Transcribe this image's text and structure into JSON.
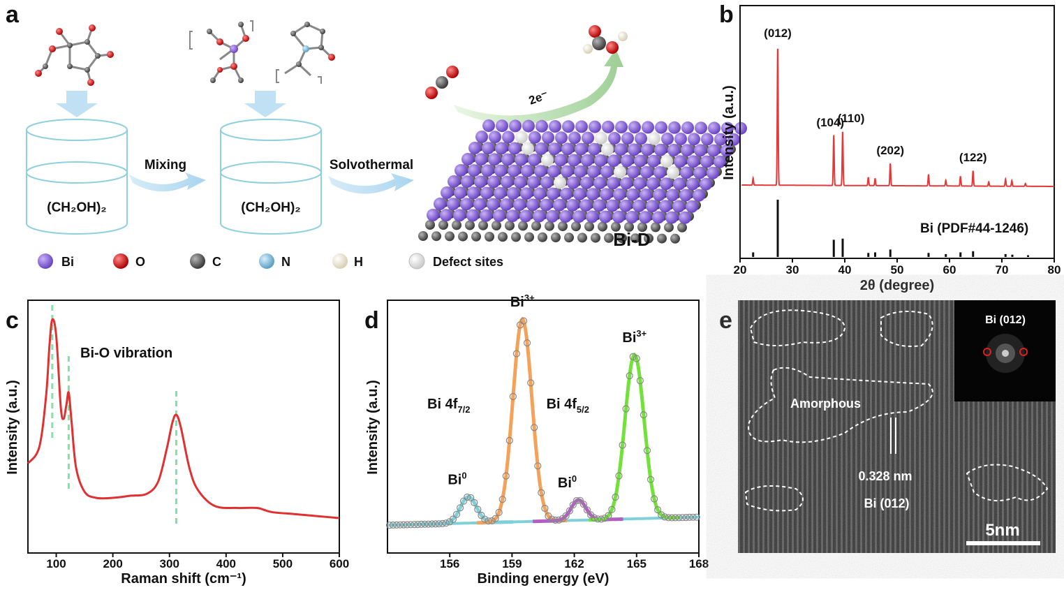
{
  "panels": {
    "a": {
      "label": "a",
      "vessel_left_text": "(CH₂OH)₂",
      "vessel_right_text": "(CH₂OH)₂",
      "step1": "Mixing",
      "step2": "Solvothermal",
      "electron": "2e⁻",
      "product": "Bi-D",
      "legend": [
        {
          "name": "Bi",
          "color": "#8a63d2"
        },
        {
          "name": "O",
          "color": "#e02020"
        },
        {
          "name": "C",
          "color": "#666666"
        },
        {
          "name": "N",
          "color": "#7ab8d8"
        },
        {
          "name": "H",
          "color": "#efe8d5"
        },
        {
          "name": "Defect sites",
          "color": "#f2f2f2"
        }
      ]
    },
    "b": {
      "label": "b",
      "reference": "Bi (PDF#44-1246)"
    },
    "c": {
      "label": "c",
      "annotation": "Bi-O vibration"
    },
    "d": {
      "label": "d"
    },
    "e": {
      "label": "e",
      "amorphous": "Amorphous",
      "spacing": "0.328 nm",
      "plane": "Bi (012)",
      "inset": "Bi (012)",
      "scale": "5nm"
    }
  },
  "chart_data": [
    {
      "id": "b",
      "type": "line",
      "xlabel": "2θ (degree)",
      "ylabel": "Intensity (a.u.)",
      "xlim": [
        20,
        80
      ],
      "xticks": [
        20,
        30,
        40,
        50,
        60,
        70,
        80
      ],
      "series_color": "#e23a3a",
      "peaks": [
        {
          "x": 22.5,
          "h": 0.05
        },
        {
          "x": 27.2,
          "h": 1.0
        },
        {
          "x": 37.9,
          "h": 0.36
        },
        {
          "x": 39.6,
          "h": 0.39
        },
        {
          "x": 44.5,
          "h": 0.06
        },
        {
          "x": 45.8,
          "h": 0.05
        },
        {
          "x": 48.7,
          "h": 0.16
        },
        {
          "x": 56.0,
          "h": 0.08
        },
        {
          "x": 59.3,
          "h": 0.04
        },
        {
          "x": 62.1,
          "h": 0.07
        },
        {
          "x": 64.5,
          "h": 0.11
        },
        {
          "x": 67.5,
          "h": 0.03
        },
        {
          "x": 70.7,
          "h": 0.05
        },
        {
          "x": 71.9,
          "h": 0.04
        },
        {
          "x": 74.5,
          "h": 0.02
        }
      ],
      "peak_labels": [
        {
          "x": 27.2,
          "text": "(012)"
        },
        {
          "x": 37.9,
          "text": "(104)"
        },
        {
          "x": 39.6,
          "text": "(110)"
        },
        {
          "x": 48.7,
          "text": "(202)"
        },
        {
          "x": 64.5,
          "text": "(122)"
        }
      ],
      "reference_lines": [
        {
          "x": 22.5,
          "h": 0.08
        },
        {
          "x": 27.2,
          "h": 1.0
        },
        {
          "x": 37.9,
          "h": 0.3
        },
        {
          "x": 39.6,
          "h": 0.32
        },
        {
          "x": 44.5,
          "h": 0.07
        },
        {
          "x": 45.8,
          "h": 0.08
        },
        {
          "x": 48.7,
          "h": 0.13
        },
        {
          "x": 56.0,
          "h": 0.07
        },
        {
          "x": 59.3,
          "h": 0.05
        },
        {
          "x": 62.1,
          "h": 0.08
        },
        {
          "x": 64.5,
          "h": 0.1
        },
        {
          "x": 70.7,
          "h": 0.05
        },
        {
          "x": 72.0,
          "h": 0.04
        },
        {
          "x": 75.0,
          "h": 0.03
        }
      ]
    },
    {
      "id": "c",
      "type": "line",
      "xlabel": "Raman shift (cm⁻¹)",
      "ylabel": "Intensity (a.u.)",
      "xlim": [
        50,
        600
      ],
      "xticks": [
        100,
        200,
        300,
        400,
        500,
        600
      ],
      "series_color": "#e03030",
      "marker_lines": [
        93,
        122,
        312
      ],
      "points": [
        [
          50,
          0.27
        ],
        [
          70,
          0.35
        ],
        [
          82,
          0.6
        ],
        [
          88,
          0.85
        ],
        [
          93,
          0.98
        ],
        [
          100,
          0.9
        ],
        [
          108,
          0.55
        ],
        [
          113,
          0.49
        ],
        [
          118,
          0.56
        ],
        [
          122,
          0.62
        ],
        [
          127,
          0.48
        ],
        [
          135,
          0.25
        ],
        [
          150,
          0.13
        ],
        [
          170,
          0.1
        ],
        [
          200,
          0.1
        ],
        [
          230,
          0.11
        ],
        [
          260,
          0.12
        ],
        [
          280,
          0.18
        ],
        [
          295,
          0.34
        ],
        [
          305,
          0.47
        ],
        [
          312,
          0.51
        ],
        [
          320,
          0.45
        ],
        [
          335,
          0.25
        ],
        [
          350,
          0.14
        ],
        [
          380,
          0.06
        ],
        [
          420,
          0.05
        ],
        [
          455,
          0.05
        ],
        [
          480,
          0.03
        ],
        [
          520,
          0.02
        ],
        [
          560,
          0.01
        ],
        [
          600,
          0.0
        ]
      ]
    },
    {
      "id": "d",
      "type": "line",
      "xlabel": "Binding energy (eV)",
      "ylabel": "Intensity (a.u.)",
      "xlim": [
        153,
        168
      ],
      "xticks": [
        156,
        159,
        162,
        165,
        168
      ],
      "components": [
        {
          "center": 156.9,
          "height": 0.13,
          "width": 0.55,
          "color": "#7fd0d8"
        },
        {
          "center": 159.5,
          "height": 1.0,
          "width": 0.65,
          "color": "#f4a15a"
        },
        {
          "center": 162.2,
          "height": 0.1,
          "width": 0.5,
          "color": "#b25fc4"
        },
        {
          "center": 164.9,
          "height": 0.81,
          "width": 0.65,
          "color": "#72e23a"
        }
      ],
      "peak_labels": [
        {
          "x": 156.9,
          "text": "Bi",
          "sup": "0"
        },
        {
          "x": 159.5,
          "text": "Bi",
          "sup": "3+"
        },
        {
          "x": 162.2,
          "text": "Bi",
          "sup": "0"
        },
        {
          "x": 164.9,
          "text": "Bi",
          "sup": "3+"
        }
      ],
      "orbital_labels": [
        {
          "x": 157.7,
          "text": "Bi 4f",
          "sub": "7/2"
        },
        {
          "x": 163.2,
          "text": "Bi 4f",
          "sub": "5/2"
        }
      ]
    }
  ]
}
